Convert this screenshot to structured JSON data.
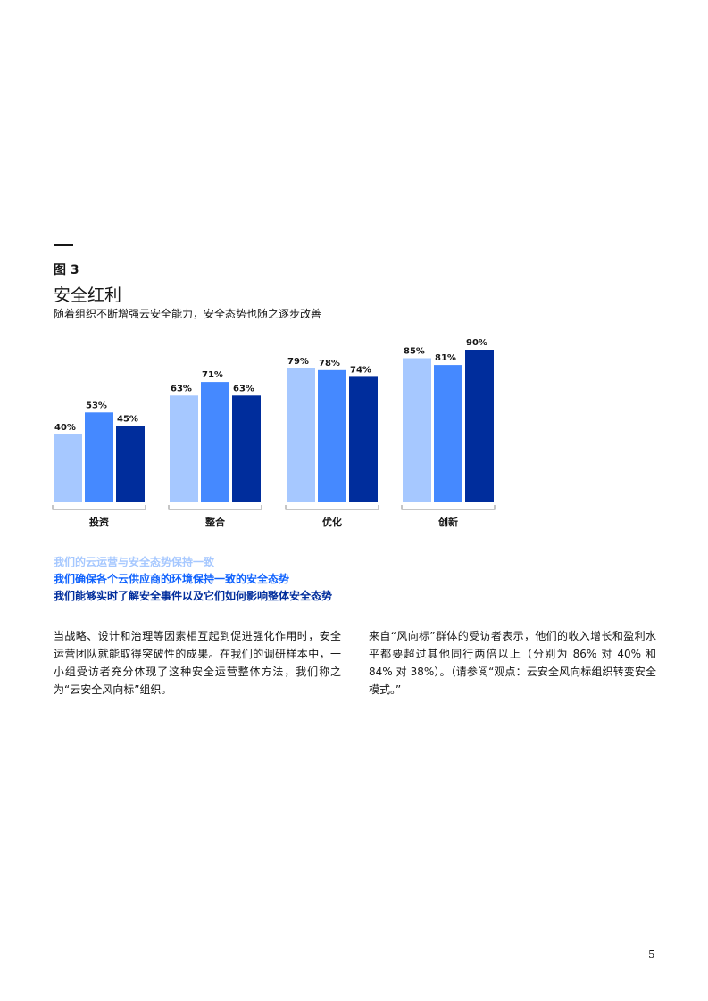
{
  "figure": {
    "label": "图 3",
    "title": "安全红利",
    "subtitle": "随着组织不断增强云安全能力，安全态势也随之逐步改善"
  },
  "chart_data": {
    "type": "bar",
    "categories": [
      "投资",
      "整合",
      "优化",
      "创新"
    ],
    "series": [
      {
        "name": "我们的云运营与安全态势保持一致",
        "values": [
          40,
          63,
          79,
          85
        ],
        "color": "#a6c8ff"
      },
      {
        "name": "我们确保各个云供应商的环境保持一致的安全态势",
        "values": [
          53,
          71,
          78,
          81
        ],
        "color": "#4589ff"
      },
      {
        "name": "我们能够实时了解安全事件以及它们如何影响整体安全态势",
        "values": [
          45,
          63,
          74,
          90
        ],
        "color": "#002d9c"
      }
    ],
    "value_suffix": "%",
    "ylim": [
      0,
      100
    ],
    "grid": false,
    "legend": "bottom"
  },
  "body": {
    "left": "当战略、设计和治理等因素相互起到促进强化作用时，安全运营团队就能取得突破性的成果。在我们的调研样本中，一小组受访者充分体现了这种安全运营整体方法，我们称之为“云安全风向标”组织。",
    "right": "来自“风向标”群体的受访者表示，他们的收入增长和盈利水平都要超过其他同行两倍以上（分别为 86% 对 40% 和 84% 对 38%）。（请参阅“观点：云安全风向标组织转变安全模式。”"
  },
  "page_number": "5"
}
